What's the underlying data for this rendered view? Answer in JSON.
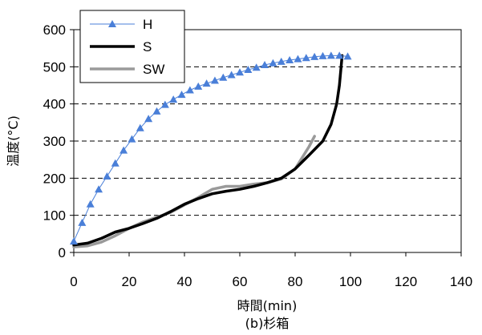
{
  "chart_data": {
    "type": "line",
    "title": "(b)杉箱",
    "xlabel": "時間(min)",
    "ylabel": "温度(°C)",
    "xlim": [
      0,
      140
    ],
    "ylim": [
      0,
      600
    ],
    "xticks": [
      0,
      20,
      40,
      60,
      80,
      100,
      120,
      140
    ],
    "yticks": [
      0,
      100,
      200,
      300,
      400,
      500,
      600
    ],
    "grid": "horizontal-dashed",
    "legend_position": "top-left",
    "series": [
      {
        "name": "H",
        "color": "#4a7fd8",
        "marker": "triangle",
        "line_width": "thin",
        "points": [
          [
            0,
            30
          ],
          [
            3,
            80
          ],
          [
            6,
            130
          ],
          [
            9,
            170
          ],
          [
            12,
            205
          ],
          [
            15,
            240
          ],
          [
            18,
            275
          ],
          [
            21,
            305
          ],
          [
            24,
            335
          ],
          [
            27,
            360
          ],
          [
            30,
            380
          ],
          [
            33,
            398
          ],
          [
            36,
            412
          ],
          [
            39,
            425
          ],
          [
            42,
            437
          ],
          [
            45,
            447
          ],
          [
            48,
            455
          ],
          [
            51,
            463
          ],
          [
            54,
            471
          ],
          [
            57,
            478
          ],
          [
            60,
            485
          ],
          [
            63,
            492
          ],
          [
            66,
            498
          ],
          [
            69,
            505
          ],
          [
            72,
            510
          ],
          [
            75,
            514
          ],
          [
            78,
            518
          ],
          [
            81,
            521
          ],
          [
            84,
            524
          ],
          [
            87,
            527
          ],
          [
            90,
            529
          ],
          [
            93,
            530
          ],
          [
            96,
            530
          ],
          [
            99,
            528
          ]
        ]
      },
      {
        "name": "S",
        "color": "#000000",
        "marker": "none",
        "line_width": "thick",
        "points": [
          [
            0,
            20
          ],
          [
            5,
            25
          ],
          [
            10,
            38
          ],
          [
            15,
            55
          ],
          [
            20,
            65
          ],
          [
            25,
            78
          ],
          [
            30,
            92
          ],
          [
            35,
            110
          ],
          [
            40,
            130
          ],
          [
            45,
            145
          ],
          [
            50,
            158
          ],
          [
            55,
            165
          ],
          [
            60,
            170
          ],
          [
            65,
            178
          ],
          [
            70,
            188
          ],
          [
            75,
            200
          ],
          [
            80,
            225
          ],
          [
            85,
            262
          ],
          [
            90,
            300
          ],
          [
            93,
            345
          ],
          [
            95,
            400
          ],
          [
            96,
            450
          ],
          [
            97,
            530
          ]
        ]
      },
      {
        "name": "SW",
        "color": "#9a9a9a",
        "marker": "none",
        "line_width": "thick",
        "points": [
          [
            0,
            15
          ],
          [
            5,
            18
          ],
          [
            10,
            28
          ],
          [
            15,
            45
          ],
          [
            20,
            65
          ],
          [
            25,
            82
          ],
          [
            30,
            95
          ],
          [
            35,
            108
          ],
          [
            40,
            128
          ],
          [
            45,
            148
          ],
          [
            50,
            170
          ],
          [
            55,
            178
          ],
          [
            60,
            178
          ],
          [
            65,
            184
          ],
          [
            70,
            188
          ],
          [
            75,
            198
          ],
          [
            80,
            225
          ],
          [
            85,
            285
          ],
          [
            87,
            313
          ]
        ]
      }
    ]
  }
}
